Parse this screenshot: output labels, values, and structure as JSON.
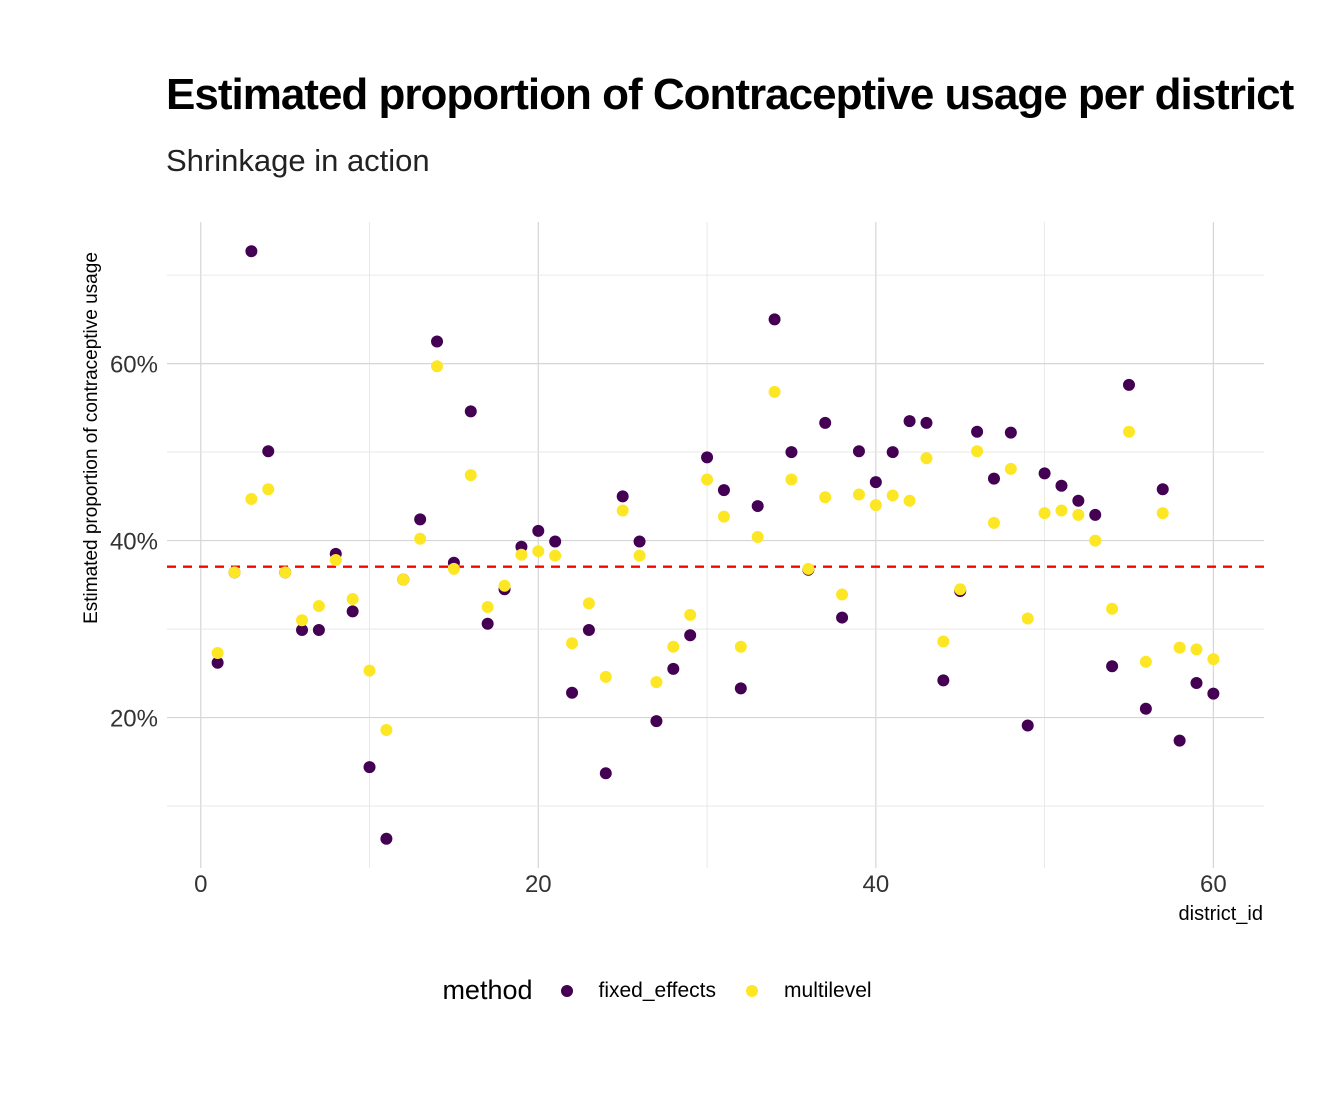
{
  "title": "Estimated proportion of Contraceptive usage per district",
  "subtitle": "Shrinkage in action",
  "chart_data": {
    "type": "scatter",
    "xlabel": "district_id",
    "ylabel": "Estimated proportion of contraceptive usage",
    "xlim": [
      -2,
      63
    ],
    "ylim": [
      0.03,
      0.76
    ],
    "x_ticks": [
      0,
      20,
      40,
      60
    ],
    "y_ticks": [
      0.2,
      0.4,
      0.6
    ],
    "y_tick_labels": [
      "20%",
      "40%",
      "60%"
    ],
    "grid": true,
    "reference_line": {
      "y": 0.3705,
      "color": "#ff0000",
      "style": "dashed"
    },
    "legend": {
      "title": "method",
      "position": "bottom"
    },
    "series": [
      {
        "name": "fixed_effects",
        "color": "#440154",
        "x": [
          1,
          2,
          3,
          4,
          5,
          6,
          7,
          8,
          9,
          10,
          11,
          12,
          13,
          14,
          15,
          16,
          17,
          18,
          19,
          20,
          21,
          22,
          23,
          24,
          25,
          26,
          27,
          28,
          29,
          30,
          31,
          32,
          33,
          34,
          35,
          36,
          37,
          38,
          39,
          40,
          41,
          42,
          43,
          44,
          45,
          46,
          47,
          48,
          49,
          50,
          51,
          52,
          53,
          54,
          55,
          56,
          57,
          58,
          59,
          60
        ],
        "y": [
          0.262,
          0.364,
          0.727,
          0.501,
          0.364,
          0.299,
          0.299,
          0.385,
          0.32,
          0.144,
          0.063,
          0.356,
          0.424,
          0.625,
          0.375,
          0.546,
          0.306,
          0.345,
          0.393,
          0.411,
          0.399,
          0.228,
          0.299,
          0.137,
          0.45,
          0.399,
          0.196,
          0.255,
          0.293,
          0.494,
          0.457,
          0.233,
          0.439,
          0.65,
          0.5,
          0.367,
          0.533,
          0.313,
          0.501,
          0.466,
          0.5,
          0.535,
          0.533,
          0.242,
          0.343,
          0.523,
          0.47,
          0.522,
          0.191,
          0.476,
          0.462,
          0.445,
          0.429,
          0.258,
          0.576,
          0.21,
          0.458,
          0.174,
          0.239,
          0.227
        ]
      },
      {
        "name": "multilevel",
        "color": "#fde725",
        "x": [
          1,
          2,
          3,
          4,
          5,
          6,
          7,
          8,
          9,
          10,
          11,
          12,
          13,
          14,
          15,
          16,
          17,
          18,
          19,
          20,
          21,
          22,
          23,
          24,
          25,
          26,
          27,
          28,
          29,
          30,
          31,
          32,
          33,
          34,
          35,
          36,
          37,
          38,
          39,
          40,
          41,
          42,
          43,
          44,
          45,
          46,
          47,
          48,
          49,
          50,
          51,
          52,
          53,
          54,
          55,
          56,
          57,
          58,
          59,
          60
        ],
        "y": [
          0.273,
          0.364,
          0.447,
          0.458,
          0.364,
          0.31,
          0.326,
          0.378,
          0.334,
          0.253,
          0.186,
          0.356,
          0.402,
          0.597,
          0.368,
          0.474,
          0.325,
          0.349,
          0.384,
          0.388,
          0.383,
          0.284,
          0.329,
          0.246,
          0.434,
          0.383,
          0.24,
          0.28,
          0.316,
          0.469,
          0.427,
          0.28,
          0.404,
          0.568,
          0.469,
          0.368,
          0.449,
          0.339,
          0.452,
          0.44,
          0.451,
          0.445,
          0.493,
          0.286,
          0.345,
          0.501,
          0.42,
          0.481,
          0.312,
          0.431,
          0.434,
          0.429,
          0.4,
          0.323,
          0.523,
          0.263,
          0.431,
          0.279,
          0.277,
          0.266
        ]
      }
    ]
  }
}
